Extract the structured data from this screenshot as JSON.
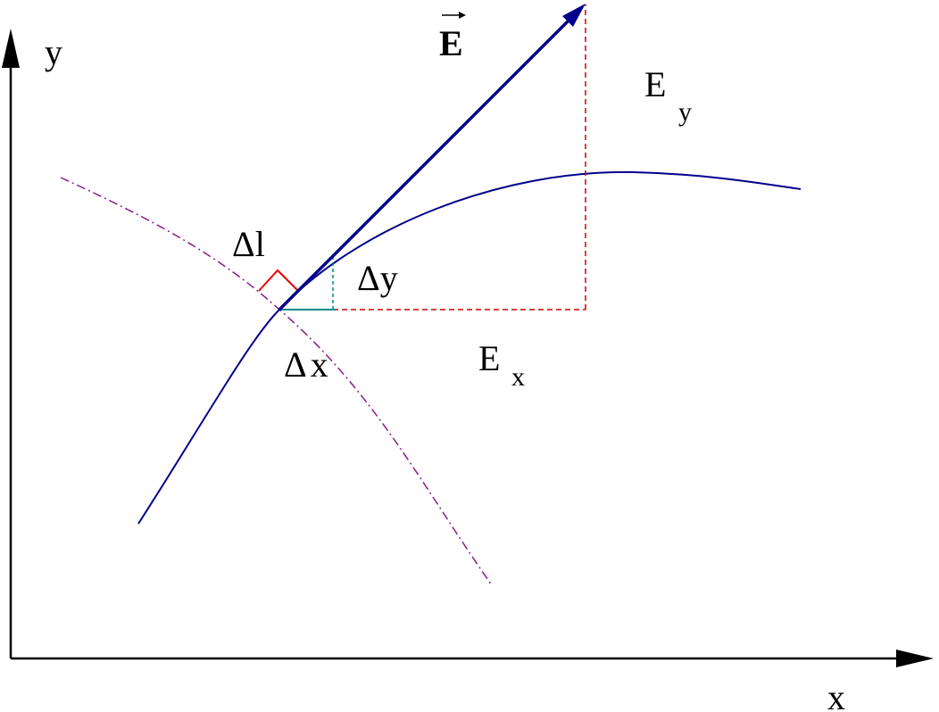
{
  "axes": {
    "y_label": "y",
    "x_label": "x"
  },
  "vector": {
    "label": "E"
  },
  "components": {
    "e_y": {
      "base": "E",
      "sub": "y"
    },
    "e_x": {
      "base": "E",
      "sub": "x"
    }
  },
  "increments": {
    "delta_l": "Δl",
    "delta_y": "Δy",
    "delta_x": "Δx"
  }
}
